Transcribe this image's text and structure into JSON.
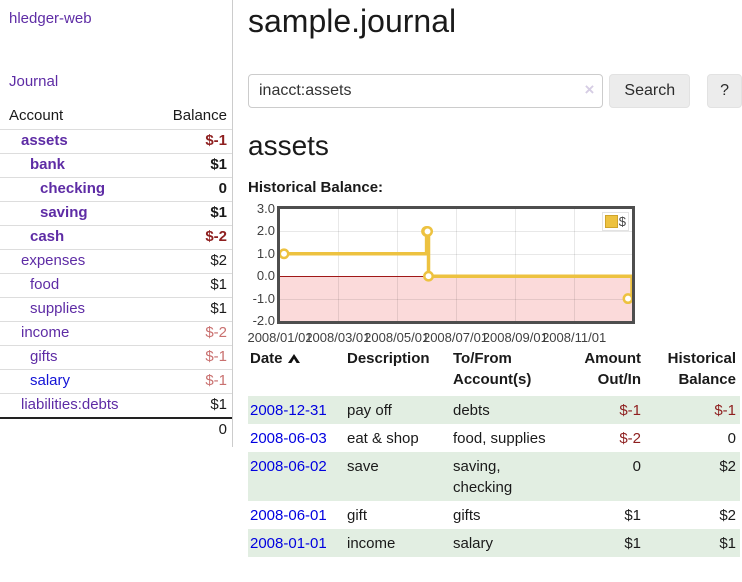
{
  "header": {
    "brand": "hledger-web"
  },
  "sidebar": {
    "journal_label": "Journal",
    "col_account": "Account",
    "col_balance": "Balance",
    "accounts": [
      {
        "name": "assets",
        "depth": 1,
        "bold": true,
        "balance": "$-1",
        "neg": "strong"
      },
      {
        "name": "bank",
        "depth": 2,
        "bold": true,
        "balance": "$1"
      },
      {
        "name": "checking",
        "depth": 3,
        "bold": true,
        "balance": "0"
      },
      {
        "name": "saving",
        "depth": 3,
        "bold": true,
        "balance": "$1"
      },
      {
        "name": "cash",
        "depth": 2,
        "bold": true,
        "balance": "$-2",
        "neg": "strong"
      },
      {
        "name": "expenses",
        "depth": 1,
        "bold": false,
        "balance": "$2"
      },
      {
        "name": "food",
        "depth": 2,
        "bold": false,
        "balance": "$1"
      },
      {
        "name": "supplies",
        "depth": 2,
        "bold": false,
        "balance": "$1"
      },
      {
        "name": "income",
        "depth": 1,
        "bold": false,
        "balance": "$-2",
        "neg": "soft"
      },
      {
        "name": "gifts",
        "depth": 2,
        "bold": false,
        "balance": "$-1",
        "neg": "soft"
      },
      {
        "name": "salary",
        "depth": 2,
        "bold": false,
        "balance": "$-1",
        "neg": "soft",
        "link_color": "blue"
      },
      {
        "name": "liabilities:debts",
        "depth": 1,
        "bold": false,
        "balance": "$1"
      }
    ],
    "total": "0"
  },
  "main": {
    "title": "sample.journal",
    "account_heading": "assets",
    "chart_label": "Historical Balance:"
  },
  "search": {
    "value": "inacct:assets",
    "clear_icon": "×",
    "button_label": "Search",
    "help_label": "?"
  },
  "chart_data": {
    "type": "line",
    "title": "Historical Balance:",
    "step": true,
    "series": [
      {
        "name": "$",
        "color": "#edc240",
        "points": [
          [
            "2008-01-01",
            1
          ],
          [
            "2008-06-01",
            2
          ],
          [
            "2008-06-02",
            2
          ],
          [
            "2008-06-03",
            0
          ],
          [
            "2008-12-31",
            -1
          ]
        ]
      }
    ],
    "x_range": [
      "2008-01-01",
      "2008-12-31"
    ],
    "x_ticks": [
      {
        "date": "2008-01-01",
        "label": "2008/01/01"
      },
      {
        "date": "2008-03-01",
        "label": "2008/03/01"
      },
      {
        "date": "2008-05-01",
        "label": "2008/05/01"
      },
      {
        "date": "2008-07-01",
        "label": "2008/07/01"
      },
      {
        "date": "2008-09-01",
        "label": "2008/09/01"
      },
      {
        "date": "2008-11-01",
        "label": "2008/11/01"
      }
    ],
    "ylim": [
      -2,
      3
    ],
    "y_ticks": [
      {
        "v": 3,
        "label": "3.0"
      },
      {
        "v": 2,
        "label": "2.0"
      },
      {
        "v": 1,
        "label": "1.0"
      },
      {
        "v": 0,
        "label": "0.0"
      },
      {
        "v": -1,
        "label": "-1.0"
      },
      {
        "v": -2,
        "label": "-2.0"
      }
    ],
    "grid": true,
    "negative_fill": "#fbdada",
    "zero_line_color": "#a01818",
    "legend": {
      "label": "$",
      "position": "top-right"
    }
  },
  "register": {
    "headers": {
      "date": "Date",
      "description": "Description",
      "accounts": "To/From Account(s)",
      "amount": "Amount Out/In",
      "balance": "Historical Balance"
    },
    "rows": [
      {
        "date": "2008-12-31",
        "description": "pay off",
        "accounts": "debts",
        "amount": "$-1",
        "amount_neg": true,
        "balance": "$-1",
        "balance_neg": true
      },
      {
        "date": "2008-06-03",
        "description": "eat & shop",
        "accounts": "food, supplies",
        "amount": "$-2",
        "amount_neg": true,
        "balance": "0",
        "balance_neg": false
      },
      {
        "date": "2008-06-02",
        "description": "save",
        "accounts": "saving, checking",
        "amount": "0",
        "amount_neg": false,
        "balance": "$2",
        "balance_neg": false
      },
      {
        "date": "2008-06-01",
        "description": "gift",
        "accounts": "gifts",
        "amount": "$1",
        "amount_neg": false,
        "balance": "$2",
        "balance_neg": false
      },
      {
        "date": "2008-01-01",
        "description": "income",
        "accounts": "salary",
        "amount": "$1",
        "amount_neg": false,
        "balance": "$1",
        "balance_neg": false
      }
    ]
  }
}
